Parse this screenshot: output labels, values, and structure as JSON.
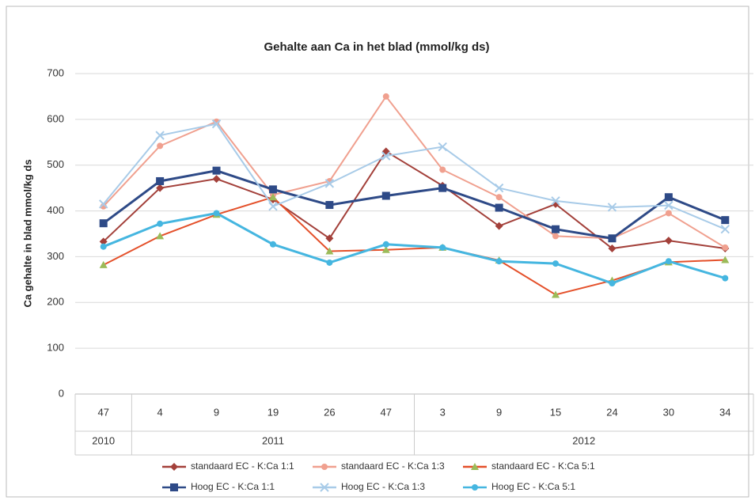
{
  "chart_data": {
    "type": "line",
    "title": "Gehalte aan Ca in het blad (mmol/kg ds)",
    "y_label": "Ca gehalte in blad mmol/kg ds",
    "groups": [
      {
        "label": "2010",
        "categories": [
          "47"
        ]
      },
      {
        "label": "2011",
        "categories": [
          "4",
          "9",
          "19",
          "26",
          "47"
        ]
      },
      {
        "label": "2012",
        "categories": [
          "3",
          "9",
          "15",
          "24",
          "30",
          "34"
        ]
      }
    ],
    "ylim": [
      0,
      700
    ],
    "yticks": [
      0,
      100,
      200,
      300,
      400,
      500,
      600,
      700
    ],
    "grid": true,
    "series": [
      {
        "name": "standaard EC - K:Ca 1:1",
        "color": "#a3403a",
        "marker": "diamond",
        "values": [
          333,
          450,
          470,
          425,
          340,
          530,
          455,
          367,
          415,
          318,
          335,
          318
        ]
      },
      {
        "name": "standaard EC - K:Ca 1:3",
        "color": "#f0a08f",
        "marker": "circle",
        "values": [
          410,
          542,
          595,
          435,
          465,
          650,
          490,
          430,
          345,
          340,
          395,
          320
        ]
      },
      {
        "name": "standaard EC - K:Ca 5:1",
        "color": "#e4502a",
        "marker": "triangle",
        "values": [
          282,
          345,
          392,
          430,
          312,
          315,
          320,
          292,
          217,
          248,
          288,
          293
        ]
      },
      {
        "name": "Hoog EC - K:Ca 1:1",
        "color": "#2e4a87",
        "marker": "square",
        "values": [
          373,
          465,
          488,
          447,
          413,
          433,
          450,
          407,
          360,
          340,
          430,
          380
        ]
      },
      {
        "name": "Hoog EC - K:Ca 1:3",
        "color": "#a8cbe8",
        "marker": "x",
        "values": [
          415,
          565,
          590,
          410,
          460,
          520,
          540,
          450,
          422,
          408,
          412,
          360
        ]
      },
      {
        "name": "Hoog EC - K:Ca 5:1",
        "color": "#45b6e0",
        "marker": "circle",
        "values": [
          322,
          372,
          395,
          327,
          287,
          327,
          320,
          290,
          285,
          242,
          290,
          253
        ]
      }
    ]
  }
}
